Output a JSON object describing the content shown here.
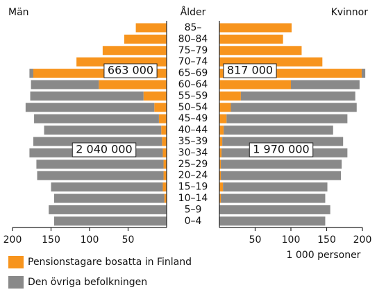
{
  "chart_data": {
    "type": "pyramid",
    "y_label": "Ålder",
    "x_label": "1 000 personer",
    "categories": [
      "85–",
      "80–84",
      "75–79",
      "70–74",
      "65–69",
      "60–64",
      "55–59",
      "50–54",
      "45–49",
      "40–44",
      "35–39",
      "30–34",
      "25–29",
      "20–24",
      "15–19",
      "10–14",
      "5–9",
      "0–4"
    ],
    "left": {
      "title": "Män",
      "xlim": [
        0,
        200
      ],
      "xticks": [
        200,
        150,
        100,
        50
      ]
    },
    "right": {
      "title": "Kvinnor",
      "xlim": [
        0,
        200
      ],
      "xticks": [
        50,
        100,
        150,
        200
      ]
    },
    "series": [
      {
        "name": "Pensionstagare bosatta in Finland",
        "color": "#f7941d",
        "values_left": [
          40,
          55,
          83,
          117,
          173,
          88,
          30,
          16,
          10,
          7,
          6,
          5,
          4,
          4,
          5,
          3,
          0,
          0
        ],
        "values_right": [
          101,
          89,
          115,
          144,
          199,
          100,
          30,
          16,
          10,
          6,
          4,
          3,
          2,
          2,
          5,
          2,
          0,
          0
        ]
      },
      {
        "name": "Den övriga befolkningen",
        "color": "#898989",
        "values_left": [
          0,
          0,
          0,
          0,
          5,
          88,
          147,
          167,
          162,
          152,
          167,
          173,
          165,
          164,
          145,
          143,
          153,
          146
        ],
        "values_right": [
          0,
          0,
          0,
          0,
          5,
          96,
          160,
          176,
          169,
          153,
          169,
          176,
          169,
          168,
          146,
          146,
          155,
          148
        ]
      }
    ],
    "annotations": [
      {
        "text": "663 000"
      },
      {
        "text": "817 000"
      },
      {
        "text": "2 040 000"
      },
      {
        "text": "1 970 000"
      }
    ]
  }
}
